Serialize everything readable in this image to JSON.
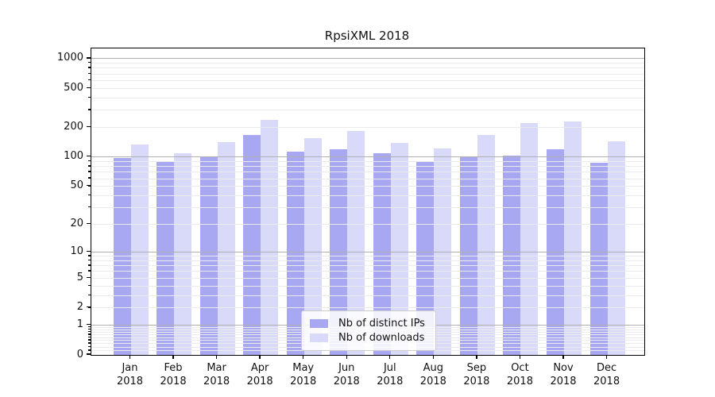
{
  "chart_data": {
    "type": "bar",
    "title": "RpsiXML 2018",
    "categories": [
      "Jan",
      "Feb",
      "Mar",
      "Apr",
      "May",
      "Jun",
      "Jul",
      "Aug",
      "Sep",
      "Oct",
      "Nov",
      "Dec"
    ],
    "year_label": "2018",
    "series": [
      {
        "name": "Nb of distinct IPs",
        "color": "#a8a8f2",
        "values": [
          97,
          91,
          102,
          168,
          114,
          121,
          110,
          91,
          102,
          103,
          121,
          88
        ]
      },
      {
        "name": "Nb of downloads",
        "color": "#d9d9f9",
        "values": [
          134,
          110,
          141,
          240,
          155,
          185,
          140,
          123,
          168,
          222,
          231,
          146
        ]
      }
    ],
    "y_ticks": [
      0,
      1,
      2,
      5,
      10,
      20,
      50,
      100,
      200,
      500,
      1000
    ],
    "y_scale": "log1p",
    "ylim": [
      0,
      1270
    ],
    "xlabel": "",
    "ylabel": "",
    "grid": true,
    "legend_position": "lower-center"
  },
  "colors": {
    "major_grid": "#b0b0b0",
    "minor_grid": "#ebebeb",
    "spine": "#000000",
    "text": "#111111",
    "background": "#ffffff"
  }
}
